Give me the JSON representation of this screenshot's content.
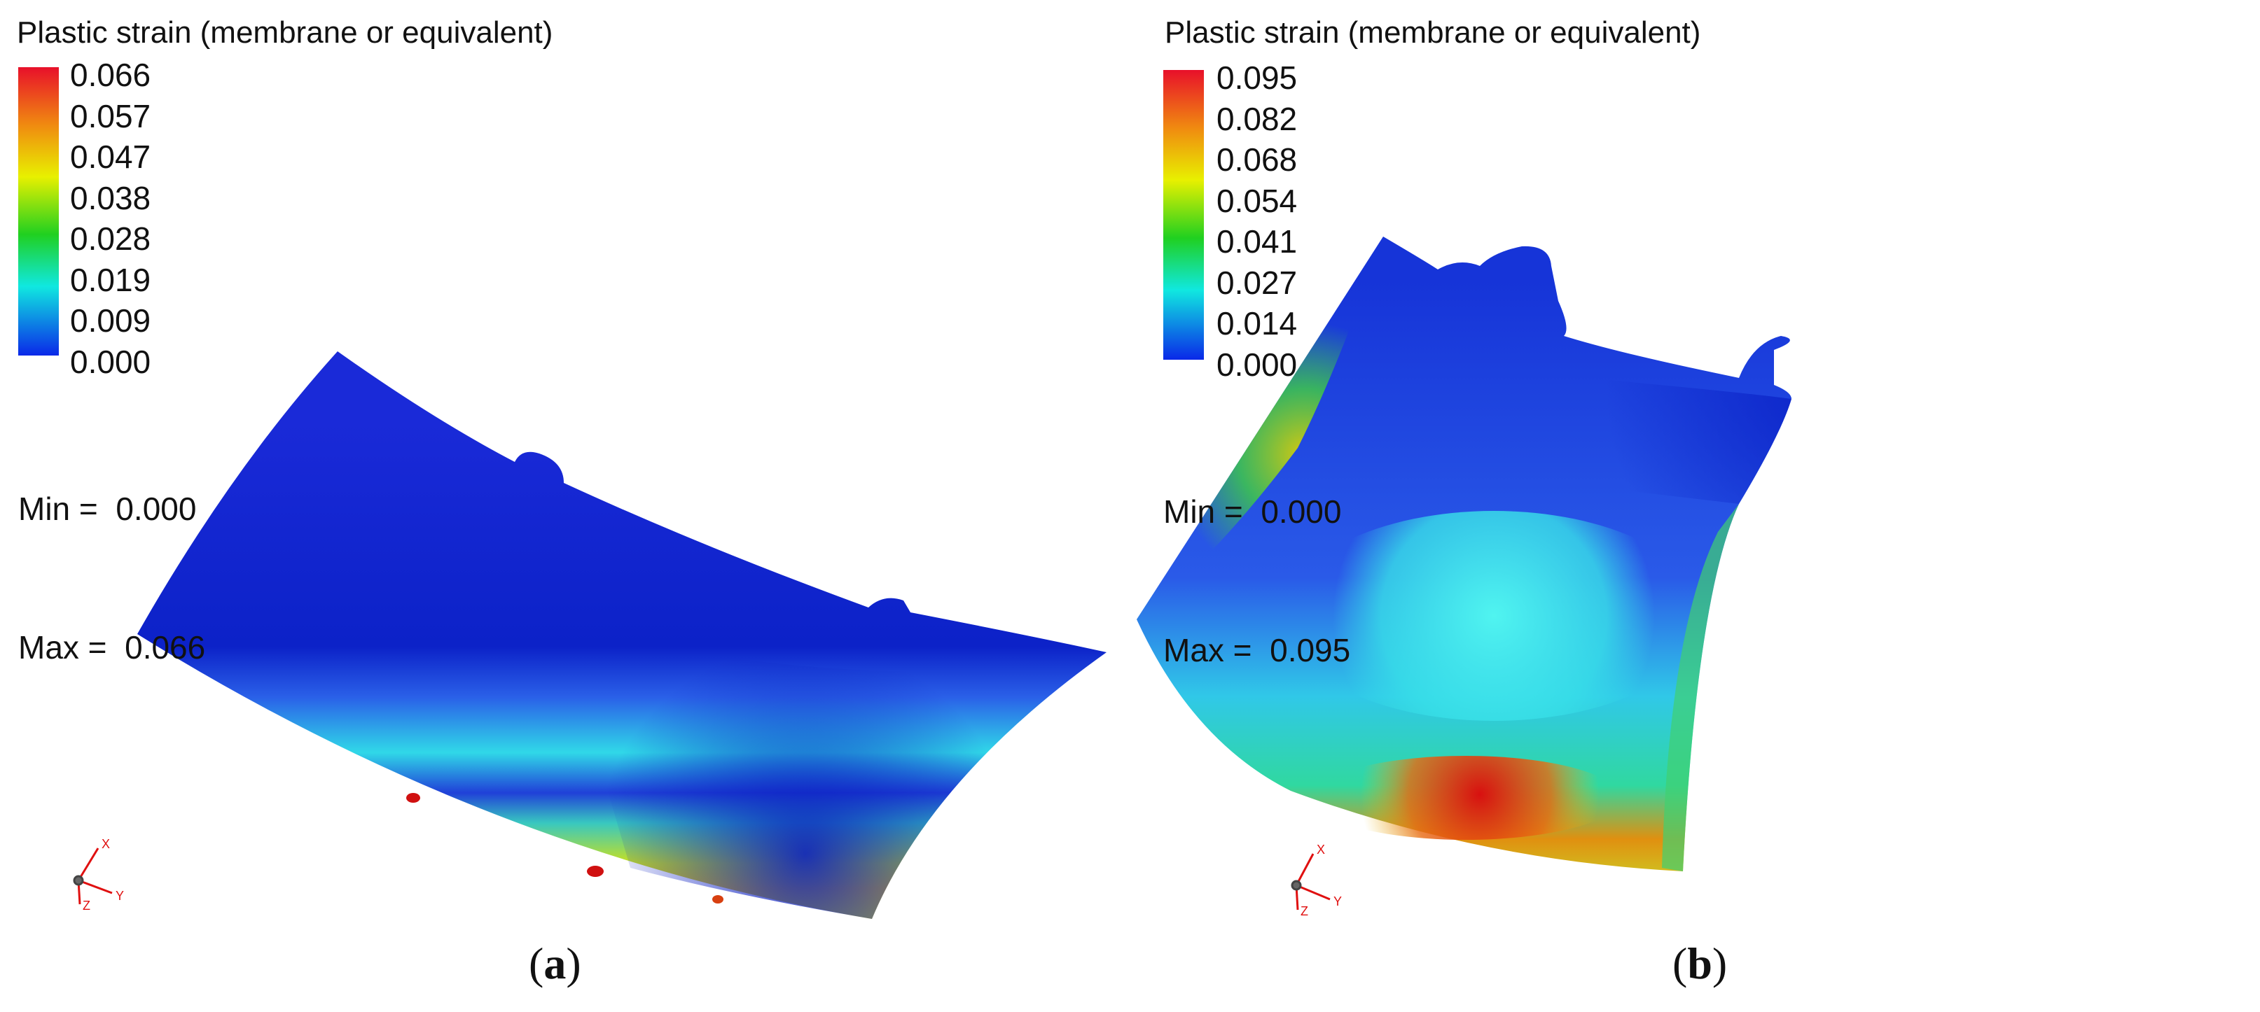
{
  "panels": [
    {
      "id": "a",
      "title": "Plastic strain (membrane or equivalent)",
      "scale_ticks": [
        "0.066",
        "0.057",
        "0.047",
        "0.038",
        "0.028",
        "0.019",
        "0.009",
        "0.000"
      ],
      "min_label": "Min =  0.000",
      "max_label": "Max =  0.066",
      "caption_open": "(",
      "caption_letter": "a",
      "caption_close": ")",
      "axes": {
        "x": "X",
        "y": "Y",
        "z": "Z"
      }
    },
    {
      "id": "b",
      "title": "Plastic strain (membrane or equivalent)",
      "scale_ticks": [
        "0.095",
        "0.082",
        "0.068",
        "0.054",
        "0.041",
        "0.027",
        "0.014",
        "0.000"
      ],
      "min_label": "Min =  0.000",
      "max_label": "Max =  0.095",
      "caption_open": "(",
      "caption_letter": "b",
      "caption_close": ")",
      "axes": {
        "x": "X",
        "y": "Y",
        "z": "Z"
      }
    }
  ],
  "colors": {
    "scale_top": "#e8102a",
    "scale_orange": "#f08a10",
    "scale_yellow": "#e8f000",
    "scale_green": "#20d020",
    "scale_cyan": "#10e8e0",
    "scale_bottom": "#0a28e8",
    "triad": "#e01010"
  }
}
